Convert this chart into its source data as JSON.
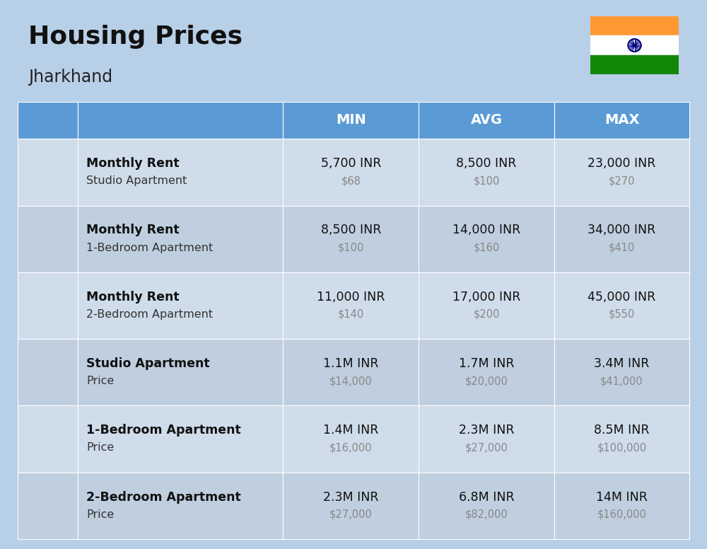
{
  "title": "Housing Prices",
  "subtitle": "Jharkhand",
  "bg_color": "#b8cfe8",
  "header_bg": "#5b9bd5",
  "header_text_color": "#ffffff",
  "row_bg_light": "#cfdcea",
  "row_bg_dark": "#bfcfdf",
  "col_headers": [
    "MIN",
    "AVG",
    "MAX"
  ],
  "rows": [
    {
      "bold_label": "Monthly Rent",
      "sub_label": "Studio Apartment",
      "icon_type": "blue_red_tall",
      "min_inr": "5,700 INR",
      "min_usd": "$68",
      "avg_inr": "8,500 INR",
      "avg_usd": "$100",
      "max_inr": "23,000 INR",
      "max_usd": "$270"
    },
    {
      "bold_label": "Monthly Rent",
      "sub_label": "1-Bedroom Apartment",
      "icon_type": "orange_green",
      "min_inr": "8,500 INR",
      "min_usd": "$100",
      "avg_inr": "14,000 INR",
      "avg_usd": "$160",
      "max_inr": "34,000 INR",
      "max_usd": "$410"
    },
    {
      "bold_label": "Monthly Rent",
      "sub_label": "2-Bedroom Apartment",
      "icon_type": "beige_roof",
      "min_inr": "11,000 INR",
      "min_usd": "$140",
      "avg_inr": "17,000 INR",
      "avg_usd": "$200",
      "max_inr": "45,000 INR",
      "max_usd": "$550"
    },
    {
      "bold_label": "Studio Apartment",
      "sub_label": "Price",
      "icon_type": "blue_red_tall",
      "min_inr": "1.1M INR",
      "min_usd": "$14,000",
      "avg_inr": "1.7M INR",
      "avg_usd": "$20,000",
      "max_inr": "3.4M INR",
      "max_usd": "$41,000"
    },
    {
      "bold_label": "1-Bedroom Apartment",
      "sub_label": "Price",
      "icon_type": "orange_green",
      "min_inr": "1.4M INR",
      "min_usd": "$16,000",
      "avg_inr": "2.3M INR",
      "avg_usd": "$27,000",
      "max_inr": "8.5M INR",
      "max_usd": "$100,000"
    },
    {
      "bold_label": "2-Bedroom Apartment",
      "sub_label": "Price",
      "icon_type": "beige_roof_small",
      "min_inr": "2.3M INR",
      "min_usd": "$27,000",
      "avg_inr": "6.8M INR",
      "avg_usd": "$82,000",
      "max_inr": "14M INR",
      "max_usd": "$160,000"
    }
  ]
}
